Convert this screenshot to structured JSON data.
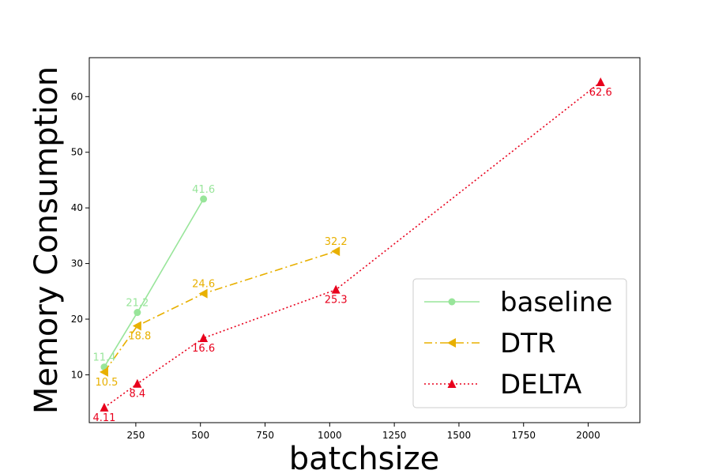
{
  "chart_data": {
    "type": "line",
    "title": "",
    "xlabel": "batchsize",
    "ylabel": "Memory Consumption",
    "xlim": [
      70,
      2200
    ],
    "ylim": [
      1.4,
      67
    ],
    "xticks": [
      250,
      500,
      750,
      1000,
      1250,
      1500,
      1750,
      2000
    ],
    "yticks": [
      10,
      20,
      30,
      40,
      50,
      60
    ],
    "legend_position": "bottom-right",
    "grid": false,
    "series": [
      {
        "name": "baseline",
        "color": "#98e59a",
        "line_style": "solid",
        "marker": "circle",
        "x": [
          128,
          256,
          512
        ],
        "y": [
          11.4,
          21.2,
          41.6
        ],
        "labels": [
          "11.4",
          "21.2",
          "41.6"
        ],
        "label_pos": "above"
      },
      {
        "name": "DTR",
        "color": "#e8b000",
        "line_style": "dashdot",
        "marker": "triangle-left",
        "x": [
          128,
          256,
          512,
          1024
        ],
        "y": [
          10.5,
          18.8,
          24.6,
          32.2
        ],
        "labels": [
          "10.5",
          "18.8",
          "24.6",
          "32.2"
        ],
        "label_pos": "mixed"
      },
      {
        "name": "DELTA",
        "color": "#e8001c",
        "line_style": "dotted",
        "marker": "triangle-up",
        "x": [
          128,
          256,
          512,
          1024,
          2048
        ],
        "y": [
          4.11,
          8.4,
          16.6,
          25.3,
          62.6
        ],
        "labels": [
          "4.11",
          "8.4",
          "16.6",
          "25.3",
          "62.6"
        ],
        "label_pos": "below"
      }
    ]
  }
}
